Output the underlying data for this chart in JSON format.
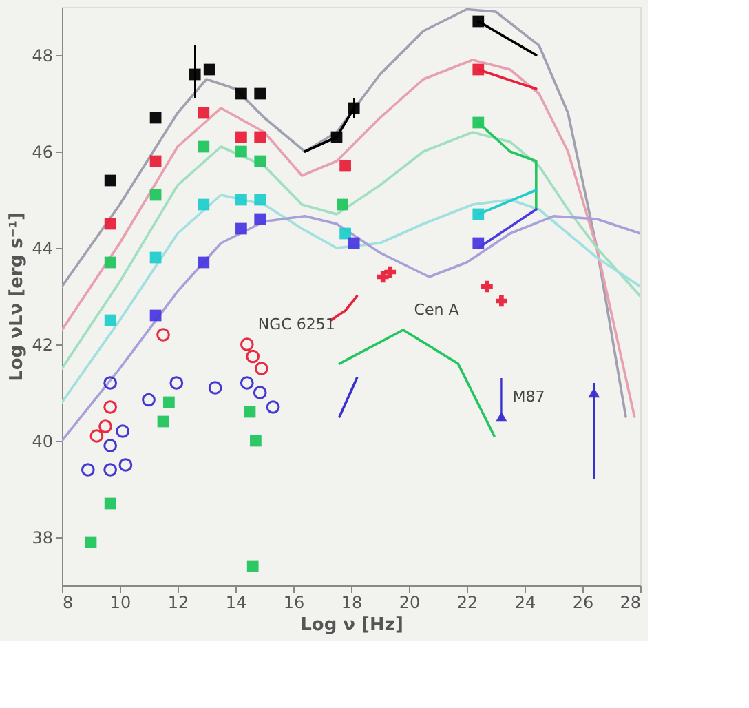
{
  "chart_data": {
    "type": "scatter",
    "xlabel": "Log ν [Hz]",
    "ylabel": "Log νLν [erg s⁻¹]",
    "xlim": [
      8,
      28
    ],
    "ylim": [
      37,
      49
    ],
    "xticks": [
      8,
      10,
      12,
      14,
      16,
      18,
      20,
      22,
      24,
      26,
      28
    ],
    "yticks": [
      38,
      40,
      42,
      44,
      46,
      48
    ],
    "grid": false,
    "annotations": [
      {
        "text": "NGC 6251",
        "x": 14.4,
        "y": 42.0
      },
      {
        "text": "Cen A",
        "x": 19.8,
        "y": 42.3
      },
      {
        "text": "M87",
        "x": 23.2,
        "y": 40.5
      }
    ],
    "series": [
      {
        "type": "line",
        "color": "#a0a0b0",
        "x": [
          8,
          10,
          12,
          13,
          14,
          15,
          16.4,
          17.5,
          19,
          20.5,
          22,
          23,
          24.5,
          25.5,
          26.5,
          27.5
        ],
        "values": [
          43.2,
          44.9,
          46.8,
          47.5,
          47.3,
          46.7,
          46.0,
          46.4,
          47.6,
          48.5,
          48.95,
          48.9,
          48.2,
          46.8,
          44.0,
          40.5
        ]
      },
      {
        "type": "line",
        "color": "#e8a0b0",
        "x": [
          8,
          10,
          12,
          13.5,
          15,
          16.3,
          17.5,
          19,
          20.5,
          22.2,
          23.5,
          24.5,
          25.5,
          26.5,
          27.8
        ],
        "values": [
          42.3,
          44.1,
          46.1,
          46.9,
          46.4,
          45.5,
          45.8,
          46.7,
          47.5,
          47.9,
          47.7,
          47.2,
          46.0,
          44.0,
          40.5
        ]
      },
      {
        "type": "line",
        "color": "#a0e0c0",
        "x": [
          8,
          10,
          12,
          13.5,
          15,
          16.3,
          17.5,
          19,
          20.5,
          22.2,
          23.5,
          24.5,
          25.5,
          26.5,
          28
        ],
        "values": [
          41.5,
          43.3,
          45.3,
          46.1,
          45.7,
          44.9,
          44.7,
          45.3,
          46.0,
          46.4,
          46.2,
          45.7,
          44.8,
          44.0,
          43.0
        ]
      },
      {
        "type": "line",
        "color": "#a0e0e0",
        "x": [
          8,
          10,
          12,
          13.5,
          15,
          16.3,
          17.5,
          19,
          20.5,
          22.2,
          23.5,
          24.5,
          25.5,
          26.5,
          28
        ],
        "values": [
          40.8,
          42.5,
          44.3,
          45.1,
          44.9,
          44.4,
          44.0,
          44.1,
          44.5,
          44.9,
          45.0,
          44.8,
          44.3,
          43.8,
          43.2
        ]
      },
      {
        "type": "line",
        "color": "#a8a0d8",
        "x": [
          8,
          10,
          12,
          13.5,
          15,
          16.4,
          17.5,
          19,
          20.7,
          22,
          23.5,
          25,
          26.5,
          28
        ],
        "values": [
          40.0,
          41.5,
          43.1,
          44.1,
          44.55,
          44.66,
          44.5,
          43.9,
          43.4,
          43.7,
          44.3,
          44.66,
          44.6,
          44.3
        ]
      },
      {
        "marker": "square",
        "color": "#000000",
        "x": [
          9.67,
          11.24,
          12.6,
          13.1,
          14.2,
          14.85,
          17.5,
          18.1,
          22.4
        ],
        "values": [
          45.4,
          46.7,
          47.6,
          47.7,
          47.2,
          47.2,
          46.3,
          46.9,
          48.7
        ],
        "errors": [
          null,
          null,
          [
            47.1,
            48.2
          ],
          null,
          null,
          null,
          null,
          0.2,
          null
        ]
      },
      {
        "marker": "square",
        "color": "#e8203a",
        "x": [
          9.67,
          11.24,
          12.9,
          14.2,
          14.85,
          17.8,
          22.4
        ],
        "values": [
          44.5,
          45.8,
          46.8,
          46.3,
          46.3,
          45.7,
          47.7
        ]
      },
      {
        "marker": "square",
        "color": "#22c55e",
        "x": [
          9.67,
          11.24,
          12.9,
          14.2,
          14.85,
          17.7,
          22.4
        ],
        "values": [
          43.7,
          45.1,
          46.1,
          46.0,
          45.8,
          44.9,
          46.6
        ]
      },
      {
        "marker": "square",
        "color": "#22cccc",
        "x": [
          9.67,
          11.24,
          12.9,
          14.2,
          14.85,
          17.8,
          22.4
        ],
        "values": [
          42.5,
          43.8,
          44.9,
          45.0,
          45.0,
          44.3,
          44.7
        ]
      },
      {
        "marker": "square",
        "color": "#4a3ae0",
        "x": [
          11.24,
          12.9,
          14.2,
          14.85,
          18.1,
          22.4
        ],
        "values": [
          42.6,
          43.7,
          44.4,
          44.6,
          44.1,
          44.1
        ]
      },
      {
        "type": "line",
        "color": "#000000",
        "x": [
          16.4,
          17.5,
          18.1
        ],
        "values": [
          46.0,
          46.3,
          46.9
        ]
      },
      {
        "type": "line",
        "color": "#000000",
        "x": [
          22.4,
          24.4
        ],
        "values": [
          48.7,
          48.0
        ]
      },
      {
        "type": "line",
        "color": "#e8203a",
        "x": [
          22.4,
          24.4
        ],
        "values": [
          47.7,
          47.3
        ]
      },
      {
        "type": "line",
        "color": "#22c55e",
        "x": [
          22.4,
          23.5,
          24.4,
          24.4
        ],
        "values": [
          46.6,
          46.0,
          45.8,
          44.8
        ]
      },
      {
        "type": "line",
        "color": "#22cccc",
        "x": [
          22.4,
          24.4
        ],
        "values": [
          44.7,
          45.2
        ]
      },
      {
        "type": "line",
        "color": "#4a3ae0",
        "x": [
          22.4,
          24.4
        ],
        "values": [
          44.0,
          44.8
        ]
      },
      {
        "marker": "circle",
        "color": "#e8203a",
        "x": [
          9.2,
          9.5,
          9.67,
          11.5,
          14.4,
          14.6,
          14.9
        ],
        "values": [
          40.1,
          40.3,
          40.7,
          42.2,
          42.0,
          41.75,
          41.5
        ]
      },
      {
        "type": "line",
        "color": "#e8203a",
        "x": [
          17.3,
          17.8,
          18.2
        ],
        "values": [
          42.5,
          42.7,
          43.0
        ]
      },
      {
        "marker": "cross",
        "color": "#e8203a",
        "x": [
          19.1,
          19.35,
          22.7,
          23.2
        ],
        "values": [
          43.4,
          43.5,
          43.2,
          42.9
        ]
      },
      {
        "marker": "circle",
        "color": "#3a2fd0",
        "x": [
          8.9,
          9.67,
          10.2,
          9.67,
          10.1,
          9.67,
          11.0,
          11.96,
          13.3,
          14.4,
          14.85,
          15.3
        ],
        "values": [
          39.4,
          39.4,
          39.5,
          39.9,
          40.2,
          41.2,
          40.85,
          41.2,
          41.1,
          41.2,
          41.0,
          40.7
        ]
      },
      {
        "type": "line",
        "color": "#3a2fd0",
        "x": [
          17.6,
          18.2
        ],
        "values": [
          40.5,
          41.3
        ]
      },
      {
        "marker": "triangle",
        "color": "#3a2fd0",
        "x": [
          23.2,
          26.4
        ],
        "values": [
          40.5,
          41.0
        ],
        "errors": [
          [
            40.4,
            41.3
          ],
          [
            39.2,
            41.2
          ]
        ]
      },
      {
        "marker": "square",
        "color": "#22c55e",
        "x": [
          9.0,
          9.67,
          11.5,
          11.7,
          14.5,
          14.7,
          14.6
        ],
        "values": [
          37.9,
          38.7,
          40.4,
          40.8,
          40.6,
          40.0,
          37.4
        ]
      },
      {
        "type": "line",
        "color": "#22c55e",
        "x": [
          17.6,
          19.8,
          21.7,
          22.95
        ],
        "values": [
          41.6,
          42.3,
          41.6,
          40.1
        ]
      }
    ]
  }
}
